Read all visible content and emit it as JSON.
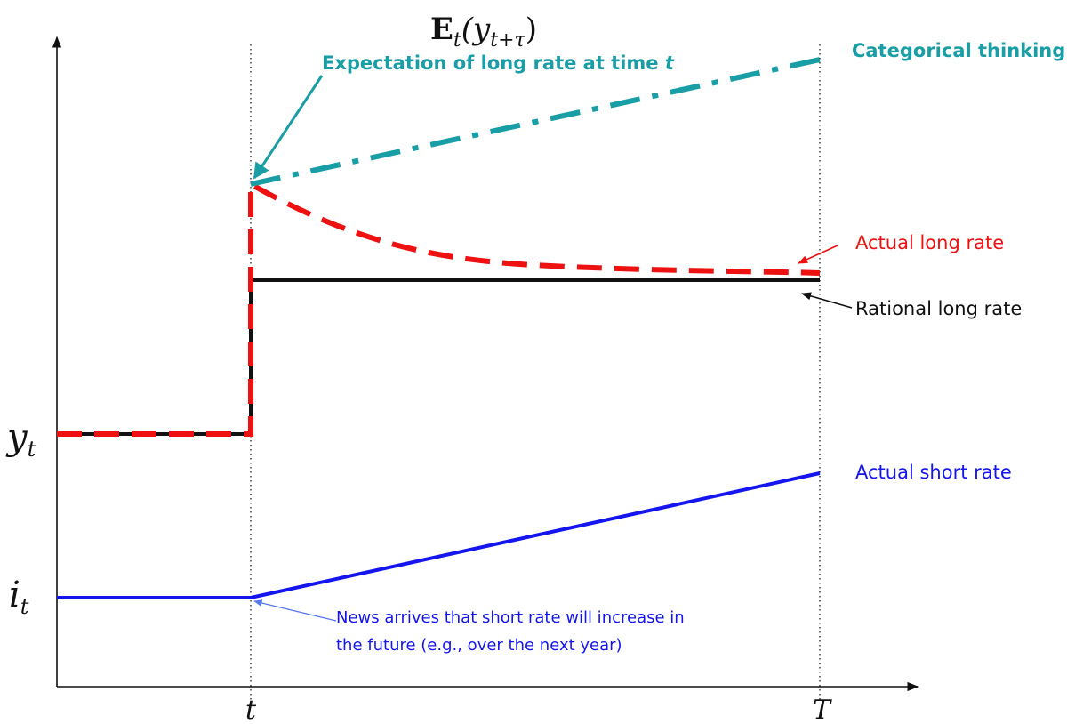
{
  "axes": {
    "y_label": "E",
    "y_label_sub": "t",
    "y_label_args": "(y",
    "y_label_args_sub": "t+τ",
    "y_label_close": ")",
    "ytick_y": "y",
    "ytick_y_sub": "t",
    "ytick_i": "i",
    "ytick_i_sub": "t",
    "xtick_t": "t",
    "xtick_T": "T"
  },
  "annotations": {
    "expectation": "Expectation of long rate at time ",
    "expectation_t": "t",
    "categorical": "Categorical thinking",
    "actual_long": "Actual long rate",
    "rational_long": "Rational long rate",
    "actual_short": "Actual short rate",
    "news_line1": "News arrives that short rate will increase in",
    "news_line2": "the future (e.g., over the next year)"
  },
  "colors": {
    "teal": "#1a9ea5",
    "red": "#ee1111",
    "black": "#111111",
    "blue": "#1515ee",
    "blue_light": "#5577ee"
  }
}
